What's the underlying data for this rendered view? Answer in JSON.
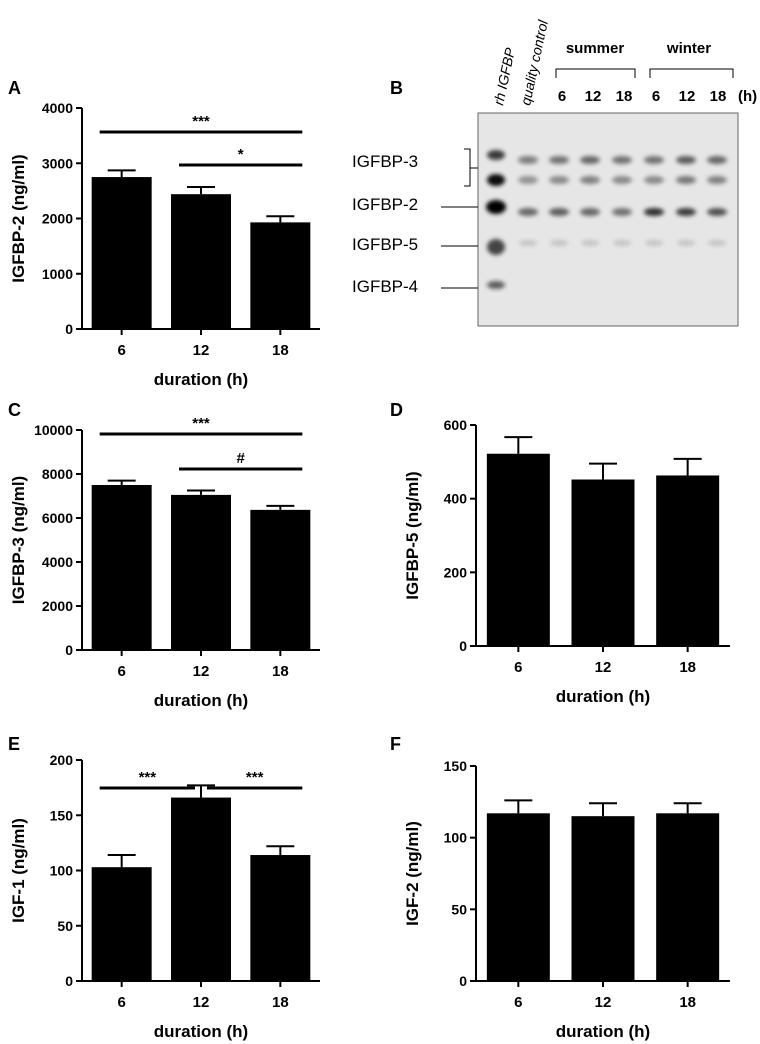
{
  "chart_data": [
    {
      "panel": "A",
      "type": "bar",
      "categories": [
        "6",
        "12",
        "18"
      ],
      "values": [
        2750,
        2440,
        1930
      ],
      "errors": [
        120,
        130,
        110
      ],
      "xlabel": "duration (h)",
      "ylabel": "IGFBP-2 (ng/ml)",
      "ylim": [
        0,
        4000
      ],
      "yticks": [
        "0",
        "1000",
        "2000",
        "3000",
        "4000"
      ],
      "significance": [
        {
          "from": "6",
          "to": "18",
          "label": "***"
        },
        {
          "from": "12",
          "to": "18",
          "label": "*"
        }
      ]
    },
    {
      "panel": "C",
      "type": "bar",
      "categories": [
        "6",
        "12",
        "18"
      ],
      "values": [
        7500,
        7050,
        6370
      ],
      "errors": [
        200,
        200,
        180
      ],
      "xlabel": "duration (h)",
      "ylabel": "IGFBP-3 (ng/ml)",
      "ylim": [
        0,
        10000
      ],
      "yticks": [
        "0",
        "2000",
        "4000",
        "6000",
        "8000",
        "10000"
      ],
      "significance": [
        {
          "from": "6",
          "to": "18",
          "label": "***"
        },
        {
          "from": "12",
          "to": "18",
          "label": "#"
        }
      ]
    },
    {
      "panel": "D",
      "type": "bar",
      "categories": [
        "6",
        "12",
        "18"
      ],
      "values": [
        522,
        452,
        463
      ],
      "errors": [
        45,
        43,
        45
      ],
      "xlabel": "duration (h)",
      "ylabel": "IGFBP-5 (ng/ml)",
      "ylim": [
        0,
        600
      ],
      "yticks": [
        "0",
        "200",
        "400",
        "600"
      ],
      "significance": []
    },
    {
      "panel": "E",
      "type": "bar",
      "categories": [
        "6",
        "12",
        "18"
      ],
      "values": [
        103,
        166,
        114
      ],
      "errors": [
        11,
        11,
        8
      ],
      "xlabel": "duration (h)",
      "ylabel": "IGF-1 (ng/ml)",
      "ylim": [
        0,
        200
      ],
      "yticks": [
        "0",
        "50",
        "100",
        "150",
        "200"
      ],
      "significance": [
        {
          "from": "6",
          "to": "12",
          "label": "***"
        },
        {
          "from": "12",
          "to": "18",
          "label": "***"
        }
      ]
    },
    {
      "panel": "F",
      "type": "bar",
      "categories": [
        "6",
        "12",
        "18"
      ],
      "values": [
        117,
        115,
        117
      ],
      "errors": [
        9,
        9,
        7
      ],
      "xlabel": "duration (h)",
      "ylabel": "IGF-2 (ng/ml)",
      "ylim": [
        0,
        150
      ],
      "yticks": [
        "0",
        "50",
        "100",
        "150"
      ],
      "significance": []
    }
  ],
  "blot": {
    "panel": "B",
    "lane_labels": [
      "rh IGFBP",
      "quality control"
    ],
    "group_labels": [
      "summer",
      "winter"
    ],
    "time_labels": [
      "6",
      "12",
      "18",
      "6",
      "12",
      "18"
    ],
    "unit": "(h)",
    "band_labels": [
      "IGFBP-3",
      "IGFBP-2",
      "IGFBP-5",
      "IGFBP-4"
    ]
  }
}
